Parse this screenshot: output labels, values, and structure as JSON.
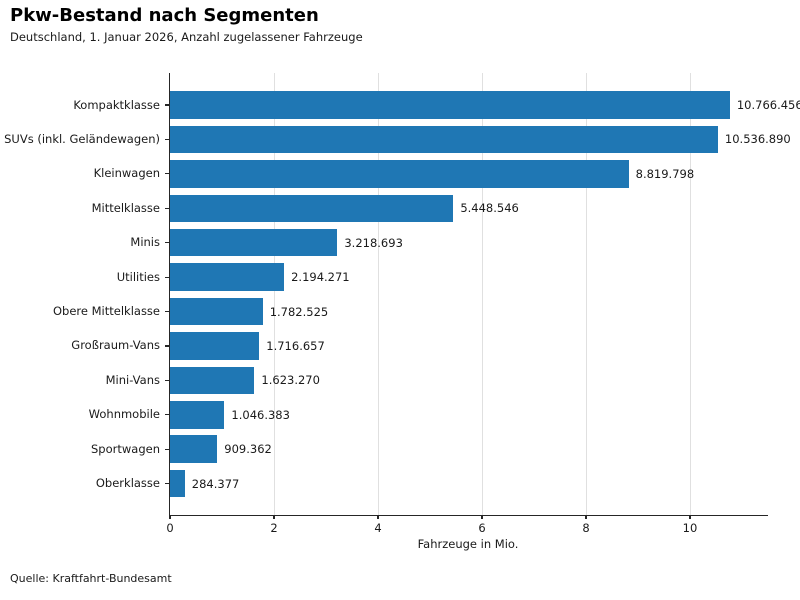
{
  "header": {
    "title": "Pkw-Bestand nach Segmenten",
    "subtitle": "Deutschland, 1. Januar 2026, Anzahl zugelassener Fahrzeuge"
  },
  "footer": {
    "source": "Quelle: Kraftfahrt-Bundesamt"
  },
  "chart_data": {
    "type": "bar",
    "orientation": "horizontal",
    "title": "Pkw-Bestand nach Segmenten",
    "subtitle": "Deutschland, 1. Januar 2026, Anzahl zugelassener Fahrzeuge",
    "categories": [
      "Kompaktklasse",
      "SUVs (inkl. Geländewagen)",
      "Kleinwagen",
      "Mittelklasse",
      "Minis",
      "Utilities",
      "Obere Mittelklasse",
      "Großraum-Vans",
      "Mini-Vans",
      "Wohnmobile",
      "Sportwagen",
      "Oberklasse"
    ],
    "values": [
      10766456,
      10536890,
      8819798,
      5448546,
      3218693,
      2194271,
      1782525,
      1716657,
      1623270,
      1046383,
      909362,
      284377
    ],
    "value_labels": [
      "10.766.456",
      "10.536.890",
      "8.819.798",
      "5.448.546",
      "3.218.693",
      "2.194.271",
      "1.782.525",
      "1.716.657",
      "1.623.270",
      "1.046.383",
      "909.362",
      "284.377"
    ],
    "xlabel": "Fahrzeuge in Mio.",
    "xticks": [
      0,
      2,
      4,
      6,
      8,
      10
    ],
    "xlim": [
      0,
      11.5
    ],
    "grid": "vertical",
    "legend": "none",
    "bar_color": "#1f77b4",
    "grid_color": "#e0e0e0",
    "axis_color": "#262626",
    "source": "Quelle: Kraftfahrt-Bundesamt"
  }
}
